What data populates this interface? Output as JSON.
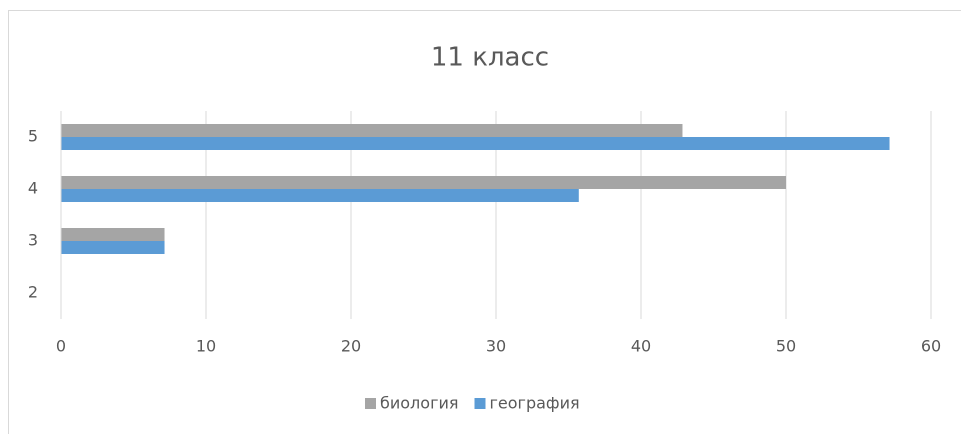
{
  "chart_data": {
    "type": "bar",
    "orientation": "horizontal",
    "title": "11 класс",
    "categories": [
      "2",
      "3",
      "4",
      "5"
    ],
    "series": [
      {
        "name": "биология",
        "color": "#a5a5a5",
        "values": [
          0,
          7.14,
          50,
          42.86
        ]
      },
      {
        "name": "география",
        "color": "#5b9bd5",
        "values": [
          0,
          7.14,
          35.71,
          57.14
        ]
      }
    ],
    "xlim": [
      0,
      60
    ],
    "xticks": [
      0,
      10,
      20,
      30,
      40,
      50,
      60
    ],
    "grid": true,
    "legend": "bottom"
  }
}
